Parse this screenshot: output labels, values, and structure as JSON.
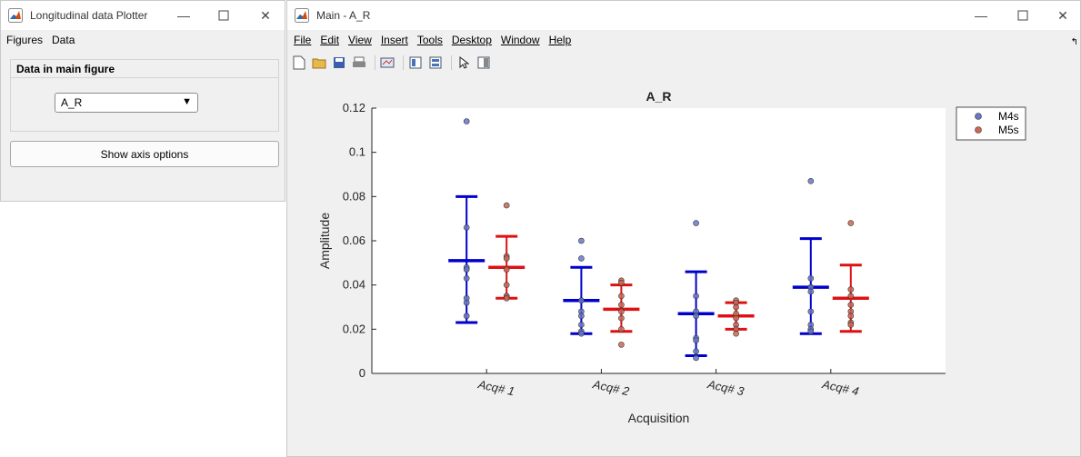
{
  "small_window": {
    "title": "Longitudinal data Plotter",
    "menu": [
      "Figures",
      "Data"
    ],
    "panel_title": "Data in main figure",
    "dropdown_value": "A_R",
    "show_axis_button": "Show axis options"
  },
  "main_window": {
    "title": "Main - A_R",
    "menu": [
      "File",
      "Edit",
      "View",
      "Insert",
      "Tools",
      "Desktop",
      "Window",
      "Help"
    ],
    "toolbar_icons": [
      "new-file-icon",
      "open-folder-icon",
      "save-icon",
      "print-icon",
      "link-plot-icon",
      "hide-plot-tools-icon",
      "show-plot-tools-icon",
      "pointer-icon",
      "dock-icon"
    ]
  },
  "chart_data": {
    "type": "scatter",
    "title": "A_R",
    "xlabel": "Acquisition",
    "ylabel": "Amplitude",
    "categories": [
      "Acq# 1",
      "Acq# 2",
      "Acq# 3",
      "Acq# 4"
    ],
    "ylim": [
      0,
      0.12
    ],
    "yticks": [
      "0",
      "0.02",
      "0.04",
      "0.06",
      "0.08",
      "0.1",
      "0.12"
    ],
    "legend_position": "top-right",
    "series": [
      {
        "name": "M4s",
        "color": "#0000cc",
        "marker_color": "#6677cc",
        "points": [
          [
            0.114,
            0.066,
            0.048,
            0.047,
            0.043,
            0.034,
            0.032,
            0.026
          ],
          [
            0.06,
            0.052,
            0.033,
            0.028,
            0.026,
            0.022,
            0.019,
            0.018
          ],
          [
            0.068,
            0.035,
            0.028,
            0.026,
            0.016,
            0.015,
            0.01,
            0.007
          ],
          [
            0.087,
            0.043,
            0.039,
            0.037,
            0.028,
            0.022,
            0.02,
            0.019
          ]
        ],
        "mean": [
          0.051,
          0.033,
          0.027,
          0.039
        ],
        "upper": [
          0.08,
          0.048,
          0.046,
          0.061
        ],
        "lower": [
          0.023,
          0.018,
          0.008,
          0.018
        ]
      },
      {
        "name": "M5s",
        "color": "#dd1111",
        "marker_color": "#cc6655",
        "points": [
          [
            0.076,
            0.053,
            0.052,
            0.047,
            0.04,
            0.035,
            0.035,
            0.034
          ],
          [
            0.042,
            0.041,
            0.035,
            0.031,
            0.028,
            0.025,
            0.02,
            0.013
          ],
          [
            0.033,
            0.032,
            0.03,
            0.027,
            0.025,
            0.022,
            0.02,
            0.018
          ],
          [
            0.068,
            0.038,
            0.035,
            0.031,
            0.028,
            0.026,
            0.023,
            0.022
          ]
        ],
        "mean": [
          0.048,
          0.029,
          0.026,
          0.034
        ],
        "upper": [
          0.062,
          0.04,
          0.032,
          0.049
        ],
        "lower": [
          0.034,
          0.019,
          0.02,
          0.019
        ]
      }
    ]
  }
}
